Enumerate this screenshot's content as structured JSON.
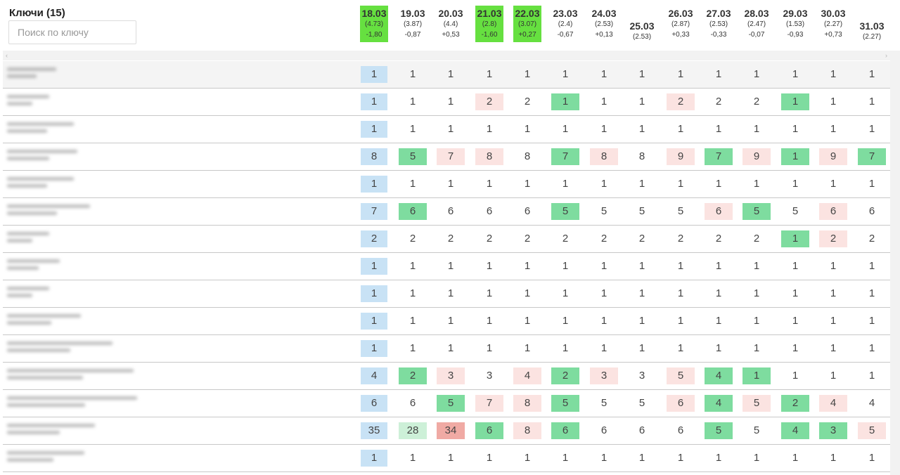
{
  "header": {
    "title": "Ключи (15)",
    "search_placeholder": "Поиск по ключу"
  },
  "scrollbar": {
    "left_arrow": "‹",
    "right_arrow": "›"
  },
  "dates": [
    {
      "date": "18.03",
      "avg": "(4.73)",
      "change": "-1,80",
      "highlight": true
    },
    {
      "date": "19.03",
      "avg": "(3.87)",
      "change": "-0,87",
      "highlight": false
    },
    {
      "date": "20.03",
      "avg": "(4.4)",
      "change": "+0,53",
      "highlight": false
    },
    {
      "date": "21.03",
      "avg": "(2.8)",
      "change": "-1,60",
      "highlight": true
    },
    {
      "date": "22.03",
      "avg": "(3.07)",
      "change": "+0,27",
      "highlight": true
    },
    {
      "date": "23.03",
      "avg": "(2.4)",
      "change": "-0,67",
      "highlight": false
    },
    {
      "date": "24.03",
      "avg": "(2.53)",
      "change": "+0,13",
      "highlight": false
    },
    {
      "date": "25.03",
      "avg": "(2.53)",
      "change": "",
      "highlight": false
    },
    {
      "date": "26.03",
      "avg": "(2.87)",
      "change": "+0,33",
      "highlight": false
    },
    {
      "date": "27.03",
      "avg": "(2.53)",
      "change": "-0,33",
      "highlight": false
    },
    {
      "date": "28.03",
      "avg": "(2.47)",
      "change": "-0,07",
      "highlight": false
    },
    {
      "date": "29.03",
      "avg": "(1.53)",
      "change": "-0,93",
      "highlight": false
    },
    {
      "date": "30.03",
      "avg": "(2.27)",
      "change": "+0,73",
      "highlight": false
    },
    {
      "date": "31.03",
      "avg": "(2.27)",
      "change": "",
      "highlight": false
    }
  ],
  "colors": {
    "date_highlight": "#66e040",
    "first_position": "#c8e2f5",
    "improved": "#7edc9f",
    "worsened": "#fbe3e1",
    "slightly_improved": "#cdf0d8",
    "strongly_worsened": "#f0aaa4"
  },
  "rows": [
    {
      "values": [
        "1",
        "1",
        "1",
        "1",
        "1",
        "1",
        "1",
        "1",
        "1",
        "1",
        "1",
        "1",
        "1",
        "1"
      ],
      "states": [
        "first",
        "",
        "",
        "",
        "",
        "",
        "",
        "",
        "",
        "",
        "",
        "",
        "",
        ""
      ]
    },
    {
      "values": [
        "1",
        "1",
        "1",
        "2",
        "2",
        "1",
        "1",
        "1",
        "2",
        "2",
        "2",
        "1",
        "1",
        "1"
      ],
      "states": [
        "first",
        "",
        "",
        "down",
        "",
        "up",
        "",
        "",
        "down",
        "",
        "",
        "up",
        "",
        ""
      ]
    },
    {
      "values": [
        "1",
        "1",
        "1",
        "1",
        "1",
        "1",
        "1",
        "1",
        "1",
        "1",
        "1",
        "1",
        "1",
        "1"
      ],
      "states": [
        "first",
        "",
        "",
        "",
        "",
        "",
        "",
        "",
        "",
        "",
        "",
        "",
        "",
        ""
      ]
    },
    {
      "values": [
        "8",
        "5",
        "7",
        "8",
        "8",
        "7",
        "8",
        "8",
        "9",
        "7",
        "9",
        "1",
        "9",
        "7"
      ],
      "states": [
        "first",
        "up",
        "down",
        "down",
        "",
        "up",
        "down",
        "",
        "down",
        "up",
        "down",
        "up",
        "down",
        "up"
      ]
    },
    {
      "values": [
        "1",
        "1",
        "1",
        "1",
        "1",
        "1",
        "1",
        "1",
        "1",
        "1",
        "1",
        "1",
        "1",
        "1"
      ],
      "states": [
        "first",
        "",
        "",
        "",
        "",
        "",
        "",
        "",
        "",
        "",
        "",
        "",
        "",
        ""
      ]
    },
    {
      "values": [
        "7",
        "6",
        "6",
        "6",
        "6",
        "5",
        "5",
        "5",
        "5",
        "6",
        "5",
        "5",
        "6",
        "6"
      ],
      "states": [
        "first",
        "up",
        "",
        "",
        "",
        "up",
        "",
        "",
        "",
        "down",
        "up",
        "",
        "down",
        ""
      ]
    },
    {
      "values": [
        "2",
        "2",
        "2",
        "2",
        "2",
        "2",
        "2",
        "2",
        "2",
        "2",
        "2",
        "1",
        "2",
        "2"
      ],
      "states": [
        "first",
        "",
        "",
        "",
        "",
        "",
        "",
        "",
        "",
        "",
        "",
        "up",
        "down",
        ""
      ]
    },
    {
      "values": [
        "1",
        "1",
        "1",
        "1",
        "1",
        "1",
        "1",
        "1",
        "1",
        "1",
        "1",
        "1",
        "1",
        "1"
      ],
      "states": [
        "first",
        "",
        "",
        "",
        "",
        "",
        "",
        "",
        "",
        "",
        "",
        "",
        "",
        ""
      ]
    },
    {
      "values": [
        "1",
        "1",
        "1",
        "1",
        "1",
        "1",
        "1",
        "1",
        "1",
        "1",
        "1",
        "1",
        "1",
        "1"
      ],
      "states": [
        "first",
        "",
        "",
        "",
        "",
        "",
        "",
        "",
        "",
        "",
        "",
        "",
        "",
        ""
      ]
    },
    {
      "values": [
        "1",
        "1",
        "1",
        "1",
        "1",
        "1",
        "1",
        "1",
        "1",
        "1",
        "1",
        "1",
        "1",
        "1"
      ],
      "states": [
        "first",
        "",
        "",
        "",
        "",
        "",
        "",
        "",
        "",
        "",
        "",
        "",
        "",
        ""
      ]
    },
    {
      "values": [
        "1",
        "1",
        "1",
        "1",
        "1",
        "1",
        "1",
        "1",
        "1",
        "1",
        "1",
        "1",
        "1",
        "1"
      ],
      "states": [
        "first",
        "",
        "",
        "",
        "",
        "",
        "",
        "",
        "",
        "",
        "",
        "",
        "",
        ""
      ]
    },
    {
      "values": [
        "4",
        "2",
        "3",
        "3",
        "4",
        "2",
        "3",
        "3",
        "5",
        "4",
        "1",
        "1",
        "1",
        "1"
      ],
      "states": [
        "first",
        "up",
        "down",
        "",
        "down",
        "up",
        "down",
        "",
        "down",
        "up",
        "up",
        "",
        "",
        ""
      ]
    },
    {
      "values": [
        "6",
        "6",
        "5",
        "7",
        "8",
        "5",
        "5",
        "5",
        "6",
        "4",
        "5",
        "2",
        "4",
        "4"
      ],
      "states": [
        "first",
        "",
        "up",
        "down",
        "down",
        "up",
        "",
        "",
        "down",
        "up",
        "down",
        "up",
        "down",
        ""
      ]
    },
    {
      "values": [
        "35",
        "28",
        "34",
        "6",
        "8",
        "6",
        "6",
        "6",
        "6",
        "5",
        "5",
        "4",
        "3",
        "5"
      ],
      "states": [
        "first",
        "lightup",
        "bigdown",
        "up",
        "down",
        "up",
        "",
        "",
        "",
        "up",
        "",
        "up",
        "up",
        "down"
      ]
    },
    {
      "values": [
        "1",
        "1",
        "1",
        "1",
        "1",
        "1",
        "1",
        "1",
        "1",
        "1",
        "1",
        "1",
        "1",
        "1"
      ],
      "states": [
        "first",
        "",
        "",
        "",
        "",
        "",
        "",
        "",
        "",
        "",
        "",
        "",
        "",
        ""
      ]
    }
  ]
}
